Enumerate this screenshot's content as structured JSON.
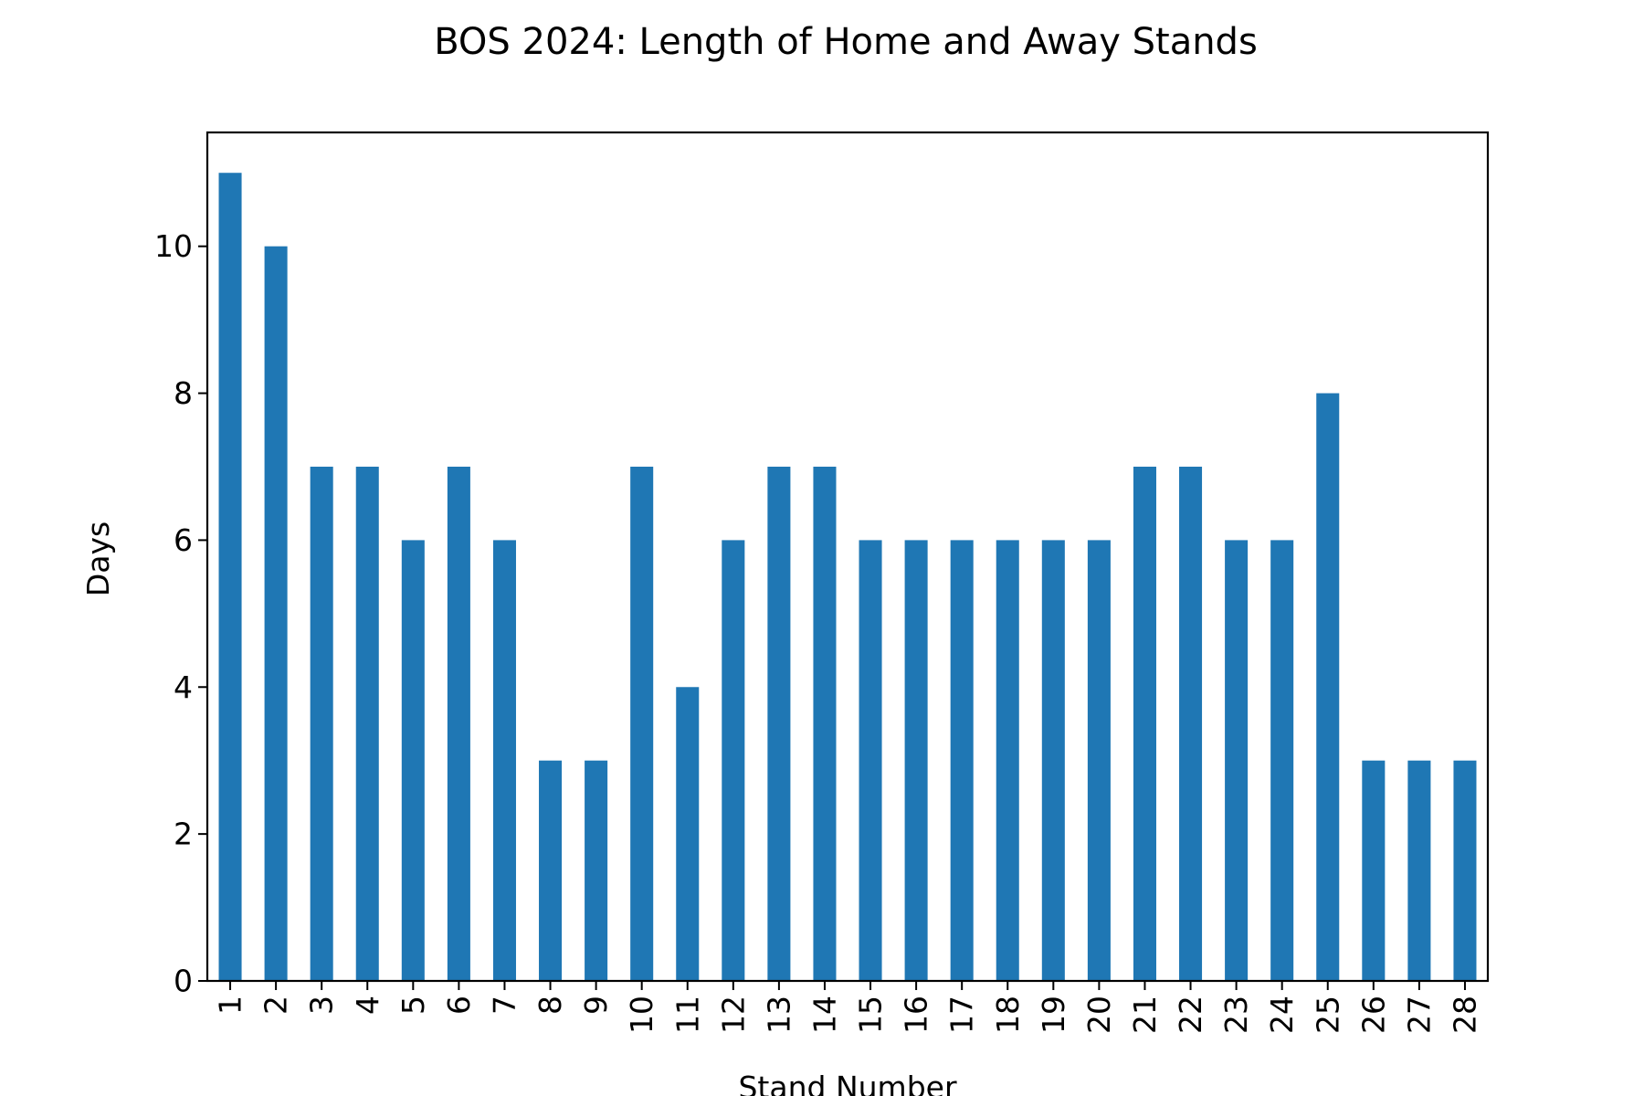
{
  "chart_data": {
    "type": "bar",
    "title": "BOS 2024: Length of Home and Away Stands",
    "xlabel": "Stand Number",
    "ylabel": "Days",
    "categories": [
      "1",
      "2",
      "3",
      "4",
      "5",
      "6",
      "7",
      "8",
      "9",
      "10",
      "11",
      "12",
      "13",
      "14",
      "15",
      "16",
      "17",
      "18",
      "19",
      "20",
      "21",
      "22",
      "23",
      "24",
      "25",
      "26",
      "27",
      "28"
    ],
    "values": [
      11,
      10,
      7,
      7,
      6,
      7,
      6,
      3,
      3,
      7,
      4,
      6,
      7,
      7,
      6,
      6,
      6,
      6,
      6,
      6,
      7,
      7,
      6,
      6,
      8,
      3,
      3,
      3
    ],
    "yticks": [
      0,
      2,
      4,
      6,
      8,
      10
    ],
    "ylim": [
      0,
      11.55
    ],
    "bar_color": "#1f77b4",
    "grid": false,
    "legend": "none"
  }
}
